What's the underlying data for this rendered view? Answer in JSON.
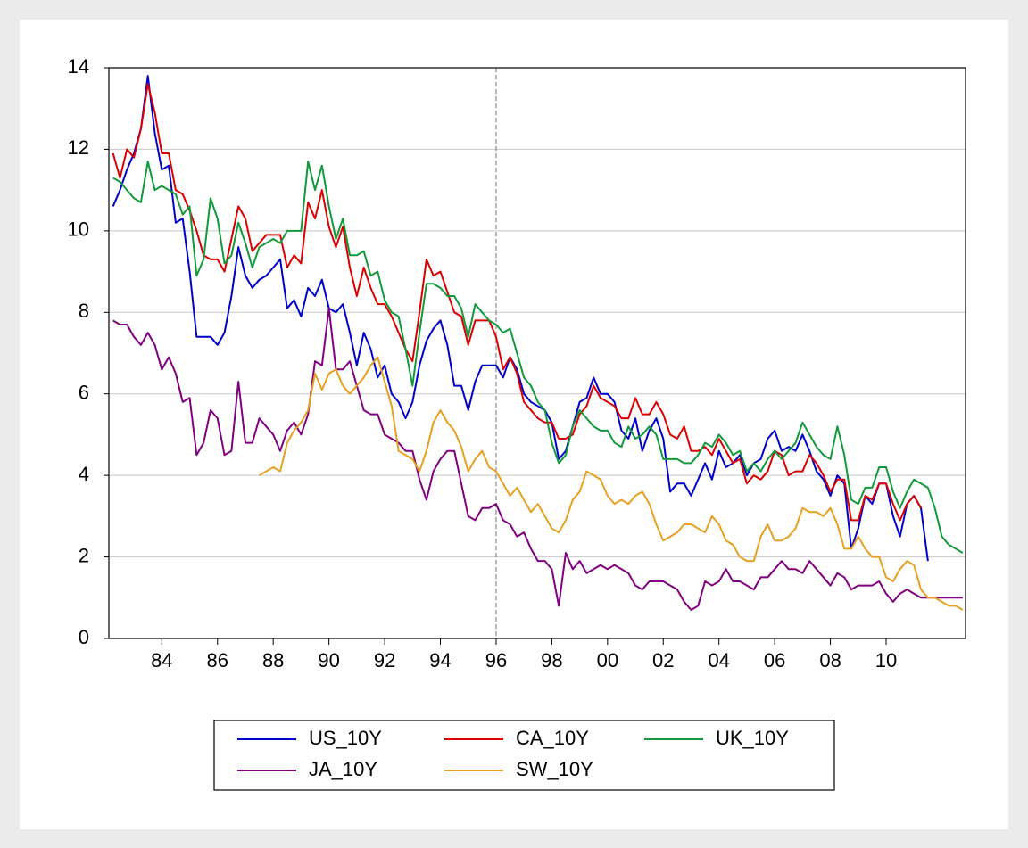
{
  "chart_data": {
    "type": "line",
    "x": [
      1982.25,
      1982.5,
      1982.75,
      1983,
      1983.25,
      1983.5,
      1983.75,
      1984,
      1984.25,
      1984.5,
      1984.75,
      1985,
      1985.25,
      1985.5,
      1985.75,
      1986,
      1986.25,
      1986.5,
      1986.75,
      1987,
      1987.25,
      1987.5,
      1987.75,
      1988,
      1988.25,
      1988.5,
      1988.75,
      1989,
      1989.25,
      1989.5,
      1989.75,
      1990,
      1990.25,
      1990.5,
      1990.75,
      1991,
      1991.25,
      1991.5,
      1991.75,
      1992,
      1992.25,
      1992.5,
      1992.75,
      1993,
      1993.25,
      1993.5,
      1993.75,
      1994,
      1994.25,
      1994.5,
      1994.75,
      1995,
      1995.25,
      1995.5,
      1995.75,
      1996,
      1996.25,
      1996.5,
      1996.75,
      1997,
      1997.25,
      1997.5,
      1997.75,
      1998,
      1998.25,
      1998.5,
      1998.75,
      1999,
      1999.25,
      1999.5,
      1999.75,
      2000,
      2000.25,
      2000.5,
      2000.75,
      2001,
      2001.25,
      2001.5,
      2001.75,
      2002,
      2002.25,
      2002.5,
      2002.75,
      2003,
      2003.25,
      2003.5,
      2003.75,
      2004,
      2004.25,
      2004.5,
      2004.75,
      2005,
      2005.25,
      2005.5,
      2005.75,
      2006,
      2006.25,
      2006.5,
      2006.75,
      2007,
      2007.25,
      2007.5,
      2007.75,
      2008,
      2008.25,
      2008.5,
      2008.75,
      2009,
      2009.25,
      2009.5,
      2009.75,
      2010,
      2010.25,
      2010.5,
      2010.75,
      2011,
      2011.25,
      2011.5,
      2011.75,
      2012,
      2012.25,
      2012.5,
      2012.75
    ],
    "series": [
      {
        "name": "US_10Y",
        "color": "#0000cc",
        "values": [
          10.6,
          11.0,
          11.5,
          11.9,
          12.5,
          13.8,
          12.4,
          11.5,
          11.6,
          10.2,
          10.3,
          9.0,
          7.4,
          7.4,
          7.4,
          7.2,
          7.5,
          8.4,
          9.6,
          8.9,
          8.6,
          8.8,
          8.9,
          9.1,
          9.3,
          8.1,
          8.3,
          7.9,
          8.6,
          8.4,
          8.8,
          8.1,
          8.0,
          8.2,
          7.5,
          6.7,
          7.5,
          7.1,
          6.4,
          6.7,
          6.0,
          5.8,
          5.4,
          5.8,
          6.7,
          7.3,
          7.6,
          7.8,
          7.2,
          6.2,
          6.2,
          5.6,
          6.3,
          6.7,
          6.7,
          6.7,
          6.4,
          6.9,
          6.6,
          6.0,
          5.8,
          5.7,
          5.6,
          5.3,
          4.4,
          4.6,
          5.2,
          5.8,
          5.9,
          6.4,
          6.0,
          6.0,
          5.8,
          5.1,
          4.9,
          5.4,
          4.6,
          5.1,
          5.4,
          4.9,
          3.6,
          3.8,
          3.8,
          3.5,
          3.9,
          4.3,
          3.9,
          4.6,
          4.2,
          4.3,
          4.5,
          4.0,
          4.3,
          4.4,
          4.9,
          5.1,
          4.6,
          4.7,
          4.6,
          5.0,
          4.6,
          4.1,
          3.9,
          3.5,
          4.0,
          3.8,
          2.2,
          2.7,
          3.5,
          3.3,
          3.8,
          3.8,
          3.0,
          2.5,
          3.3,
          3.5,
          3.2,
          1.9,
          null,
          null,
          null,
          null,
          null
        ]
      },
      {
        "name": "CA_10Y",
        "color": "#dd0000",
        "values": [
          11.9,
          11.3,
          12.0,
          11.8,
          12.5,
          13.6,
          12.9,
          11.9,
          11.9,
          11.0,
          10.9,
          10.5,
          10.0,
          9.4,
          9.3,
          9.3,
          9.0,
          9.8,
          10.6,
          10.3,
          9.5,
          9.7,
          9.9,
          9.9,
          9.9,
          9.1,
          9.4,
          9.2,
          10.7,
          10.3,
          11.0,
          10.1,
          9.6,
          10.1,
          9.1,
          8.4,
          9.1,
          8.6,
          8.2,
          8.2,
          7.9,
          7.5,
          7.1,
          6.8,
          8.0,
          9.3,
          8.9,
          9.0,
          8.5,
          8.0,
          7.9,
          7.2,
          7.8,
          7.8,
          7.8,
          7.4,
          6.6,
          6.9,
          6.5,
          5.8,
          5.6,
          5.4,
          5.3,
          5.3,
          4.9,
          4.9,
          5.0,
          5.5,
          5.7,
          6.2,
          5.9,
          5.8,
          5.7,
          5.4,
          5.4,
          5.9,
          5.5,
          5.5,
          5.8,
          5.5,
          5.0,
          4.9,
          5.2,
          4.6,
          4.6,
          4.7,
          4.5,
          4.9,
          4.6,
          4.3,
          4.4,
          3.8,
          4.0,
          3.9,
          4.1,
          4.6,
          4.5,
          4.0,
          4.1,
          4.1,
          4.5,
          4.3,
          4.0,
          3.6,
          3.9,
          3.9,
          2.9,
          2.9,
          3.5,
          3.4,
          3.8,
          3.8,
          3.3,
          2.9,
          3.3,
          3.5,
          3.2,
          null,
          null,
          null,
          null,
          null,
          null
        ]
      },
      {
        "name": "UK_10Y",
        "color": "#119a3c",
        "values": [
          11.3,
          11.2,
          11.0,
          10.8,
          10.7,
          11.7,
          11.0,
          11.1,
          11.0,
          10.9,
          10.4,
          10.6,
          8.9,
          9.3,
          10.8,
          10.3,
          9.2,
          9.4,
          10.2,
          9.7,
          9.1,
          9.6,
          9.7,
          9.8,
          9.7,
          10.0,
          10.0,
          10.0,
          11.7,
          11.0,
          11.6,
          10.6,
          9.8,
          10.3,
          9.4,
          9.4,
          9.5,
          8.9,
          9.0,
          8.3,
          8.0,
          7.9,
          7.1,
          6.2,
          7.5,
          8.7,
          8.7,
          8.6,
          8.4,
          8.4,
          8.1,
          7.4,
          8.2,
          8.0,
          7.8,
          7.7,
          7.5,
          7.6,
          7.0,
          6.4,
          6.2,
          5.8,
          5.6,
          4.8,
          4.3,
          4.5,
          5.2,
          5.6,
          5.4,
          5.2,
          5.1,
          5.1,
          4.8,
          4.7,
          5.2,
          4.9,
          5.0,
          5.2,
          5.0,
          4.4,
          4.4,
          4.4,
          4.3,
          4.3,
          4.5,
          4.8,
          4.7,
          5.0,
          4.8,
          4.5,
          4.6,
          4.1,
          4.3,
          4.1,
          4.4,
          4.6,
          4.4,
          4.6,
          4.8,
          5.3,
          5.0,
          4.7,
          4.5,
          4.4,
          5.2,
          4.5,
          3.4,
          3.3,
          3.7,
          3.7,
          4.2,
          4.2,
          3.6,
          3.2,
          3.6,
          3.9,
          3.8,
          3.7,
          3.2,
          2.5,
          2.3,
          2.2,
          2.1
        ]
      },
      {
        "name": "JA_10Y",
        "color": "#800080",
        "values": [
          7.8,
          7.7,
          7.7,
          7.4,
          7.2,
          7.5,
          7.2,
          6.6,
          6.9,
          6.5,
          5.8,
          5.9,
          4.5,
          4.8,
          5.6,
          5.4,
          4.5,
          4.6,
          6.3,
          4.8,
          4.8,
          5.4,
          5.2,
          5.0,
          4.6,
          5.1,
          5.3,
          5.0,
          5.5,
          6.8,
          6.7,
          8.1,
          6.6,
          6.6,
          6.8,
          6.2,
          5.6,
          5.5,
          5.5,
          5.0,
          4.9,
          4.8,
          4.6,
          4.6,
          3.9,
          3.4,
          4.1,
          4.4,
          4.6,
          4.6,
          3.8,
          3.0,
          2.9,
          3.2,
          3.2,
          3.3,
          2.9,
          2.8,
          2.5,
          2.6,
          2.2,
          1.9,
          1.9,
          1.7,
          0.8,
          2.1,
          1.7,
          1.9,
          1.6,
          1.7,
          1.8,
          1.7,
          1.8,
          1.7,
          1.6,
          1.3,
          1.2,
          1.4,
          1.4,
          1.4,
          1.3,
          1.2,
          0.9,
          0.7,
          0.8,
          1.4,
          1.3,
          1.4,
          1.7,
          1.4,
          1.4,
          1.3,
          1.2,
          1.5,
          1.5,
          1.7,
          1.9,
          1.7,
          1.7,
          1.6,
          1.9,
          1.7,
          1.5,
          1.3,
          1.6,
          1.5,
          1.2,
          1.3,
          1.3,
          1.3,
          1.4,
          1.1,
          0.9,
          1.1,
          1.2,
          1.1,
          1.0,
          1.0,
          1.0,
          1.0,
          1.0,
          1.0,
          1.0
        ]
      },
      {
        "name": "SW_10Y",
        "color": "#e8a020",
        "values": [
          null,
          null,
          null,
          null,
          null,
          null,
          null,
          null,
          null,
          null,
          null,
          null,
          null,
          null,
          null,
          null,
          null,
          null,
          null,
          null,
          null,
          4.0,
          4.1,
          4.2,
          4.1,
          4.8,
          5.1,
          5.3,
          5.6,
          6.5,
          6.1,
          6.5,
          6.6,
          6.2,
          6.0,
          6.2,
          6.4,
          6.7,
          6.9,
          6.3,
          5.7,
          4.6,
          4.5,
          4.4,
          4.1,
          4.6,
          5.3,
          5.6,
          5.3,
          5.1,
          4.7,
          4.1,
          4.4,
          4.6,
          4.2,
          4.1,
          3.8,
          3.5,
          3.7,
          3.4,
          3.1,
          3.3,
          3.0,
          2.7,
          2.6,
          2.9,
          3.4,
          3.6,
          4.1,
          4.0,
          3.9,
          3.5,
          3.3,
          3.4,
          3.3,
          3.5,
          3.6,
          3.3,
          2.8,
          2.4,
          2.5,
          2.6,
          2.8,
          2.8,
          2.7,
          2.6,
          3.0,
          2.8,
          2.4,
          2.3,
          2.0,
          1.9,
          1.9,
          2.5,
          2.8,
          2.4,
          2.4,
          2.5,
          2.7,
          3.2,
          3.1,
          3.1,
          3.0,
          3.2,
          2.8,
          2.2,
          2.2,
          2.5,
          2.2,
          2.0,
          2.0,
          1.5,
          1.4,
          1.7,
          1.9,
          1.8,
          1.2,
          1.0,
          1.0,
          0.9,
          0.8,
          0.8,
          0.7
        ]
      }
    ],
    "xlim": [
      1982.1,
      2012.85
    ],
    "xticks": [
      {
        "value": 1984,
        "label": "84"
      },
      {
        "value": 1986,
        "label": "86"
      },
      {
        "value": 1988,
        "label": "88"
      },
      {
        "value": 1990,
        "label": "90"
      },
      {
        "value": 1992,
        "label": "92"
      },
      {
        "value": 1994,
        "label": "94"
      },
      {
        "value": 1996,
        "label": "96"
      },
      {
        "value": 1998,
        "label": "98"
      },
      {
        "value": 2000,
        "label": "00"
      },
      {
        "value": 2002,
        "label": "02"
      },
      {
        "value": 2004,
        "label": "04"
      },
      {
        "value": 2006,
        "label": "06"
      },
      {
        "value": 2008,
        "label": "08"
      },
      {
        "value": 2010,
        "label": "10"
      }
    ],
    "ylim": [
      0,
      14
    ],
    "yticks": [
      0,
      2,
      4,
      6,
      8,
      10,
      12,
      14
    ],
    "grid": true,
    "reference_line_x": 1996,
    "legend": "bottom"
  }
}
